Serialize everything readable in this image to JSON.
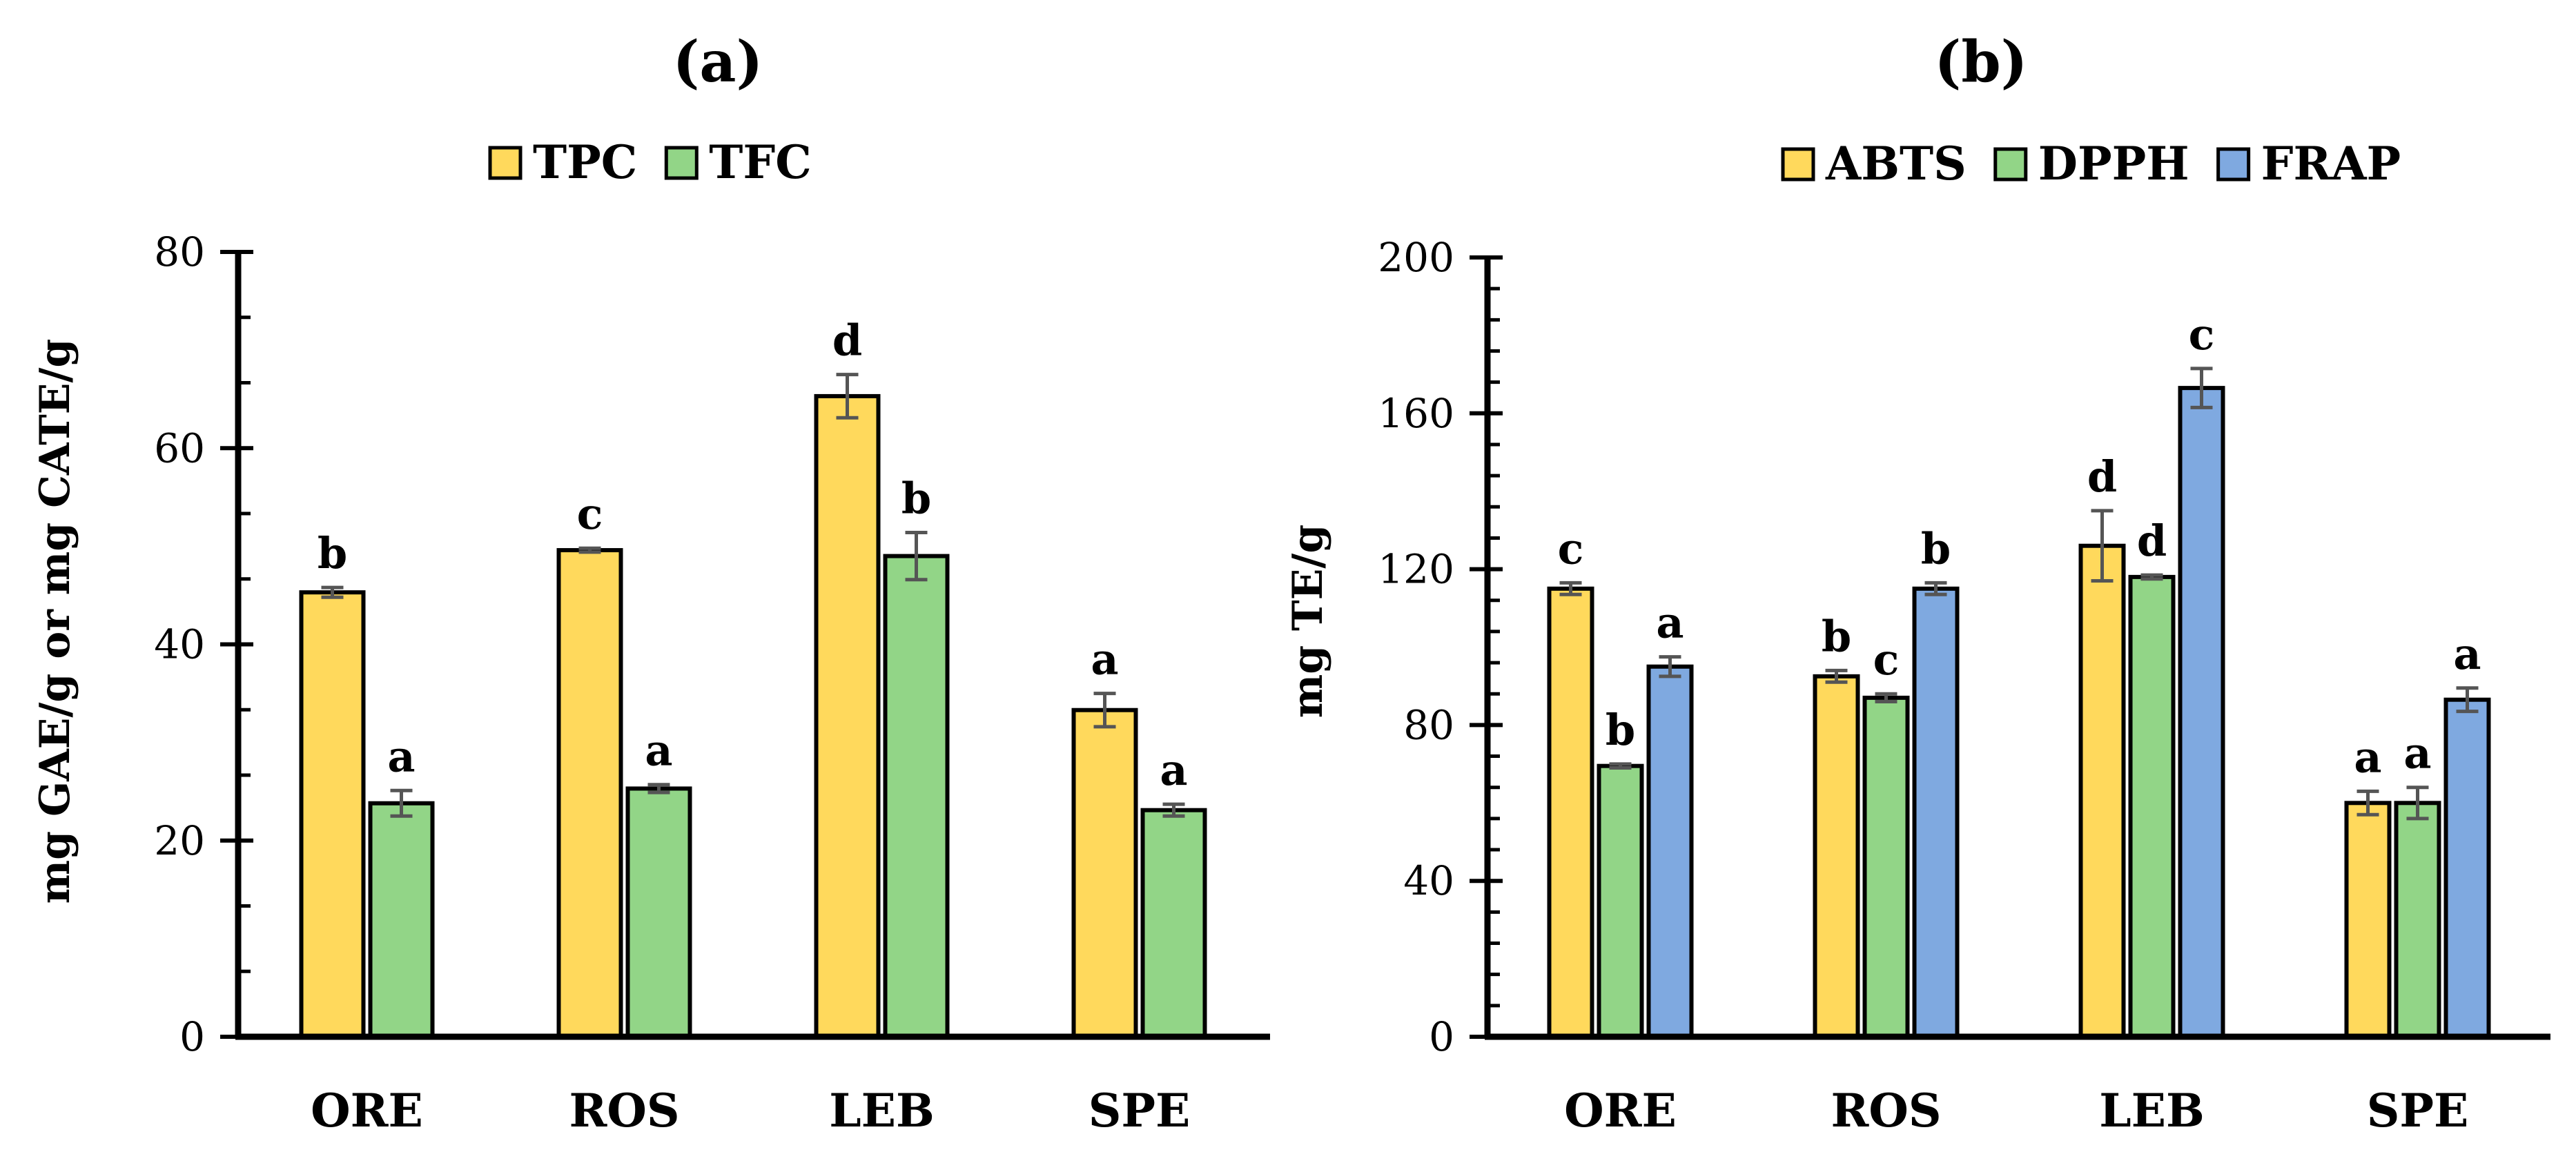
{
  "chart_data": [
    {
      "type": "bar",
      "title": "(a)",
      "xlabel": "",
      "ylabel": "mg GAE/g or mg CATE/g",
      "ylim": [
        0,
        80
      ],
      "yticks": [
        0,
        20,
        40,
        60,
        80
      ],
      "tick_labels": [
        "0",
        "20",
        "40",
        "60",
        "80"
      ],
      "categories": [
        "ORE",
        "ROS",
        "LEB",
        "SPE"
      ],
      "legend_position": "top-center",
      "series": [
        {
          "name": "TPC",
          "color": "#FFD95C",
          "values": [
            45.3,
            49.6,
            65.3,
            33.3
          ],
          "errors": [
            0.5,
            0.2,
            2.2,
            1.7
          ],
          "labels": [
            "b",
            "c",
            "d",
            "a"
          ]
        },
        {
          "name": "TFC",
          "color": "#92D587",
          "values": [
            23.8,
            25.3,
            49.0,
            23.1
          ],
          "errors": [
            1.3,
            0.4,
            2.4,
            0.6
          ],
          "labels": [
            "a",
            "a",
            "b",
            "a"
          ]
        }
      ]
    },
    {
      "type": "bar",
      "title": "(b)",
      "xlabel": "",
      "ylabel": "mg TE/g",
      "ylim": [
        0,
        200
      ],
      "yticks": [
        0,
        40,
        80,
        120,
        160,
        200
      ],
      "tick_labels": [
        "0",
        "40",
        "80",
        "120",
        "160",
        "200"
      ],
      "categories": [
        "ORE",
        "ROS",
        "LEB",
        "SPE"
      ],
      "legend_position": "top-right",
      "series": [
        {
          "name": "ABTS",
          "color": "#FFD95C",
          "values": [
            115.0,
            92.5,
            126.0,
            60.0
          ],
          "errors": [
            1.5,
            1.5,
            9.0,
            3.0
          ],
          "labels": [
            "c",
            "b",
            "d",
            "a"
          ]
        },
        {
          "name": "DPPH",
          "color": "#92D587",
          "values": [
            69.5,
            87.0,
            118.0,
            60.0
          ],
          "errors": [
            0.5,
            1.0,
            0.5,
            4.0
          ],
          "labels": [
            "b",
            "c",
            "d",
            "a"
          ]
        },
        {
          "name": "FRAP",
          "color": "#7FA9E0",
          "values": [
            95.0,
            115.0,
            166.5,
            86.5
          ],
          "errors": [
            2.5,
            1.5,
            5.0,
            3.0
          ],
          "labels": [
            "a",
            "b",
            "c",
            "a"
          ]
        }
      ]
    }
  ]
}
